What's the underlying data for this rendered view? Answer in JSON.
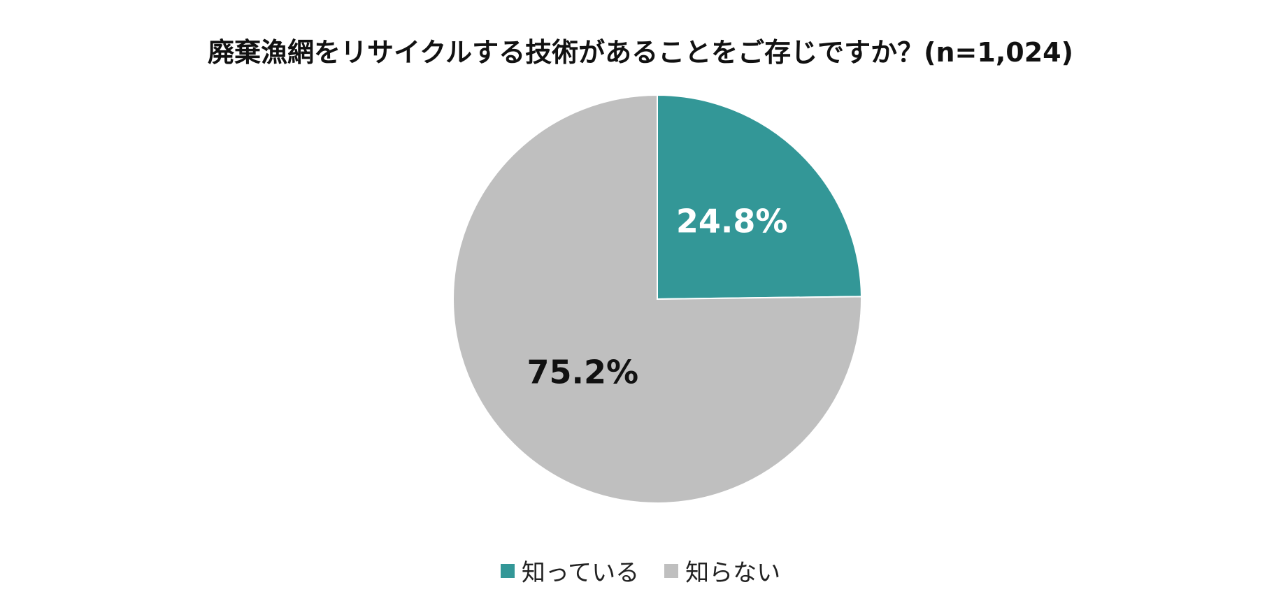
{
  "chart_data": {
    "type": "pie",
    "title": "廃棄漁網をリサイクルする技術があることをご存じですか？(n=1,024)",
    "slices": [
      {
        "label": "知っている",
        "value": 24.8,
        "value_label": "24.8%",
        "color": "#339797",
        "label_color": "#ffffff"
      },
      {
        "label": "知らない",
        "value": 75.2,
        "value_label": "75.2%",
        "color": "#bfbfbf",
        "label_color": "#111111"
      }
    ],
    "start_angle": "12 o'clock, clockwise",
    "legend_position": "bottom"
  }
}
